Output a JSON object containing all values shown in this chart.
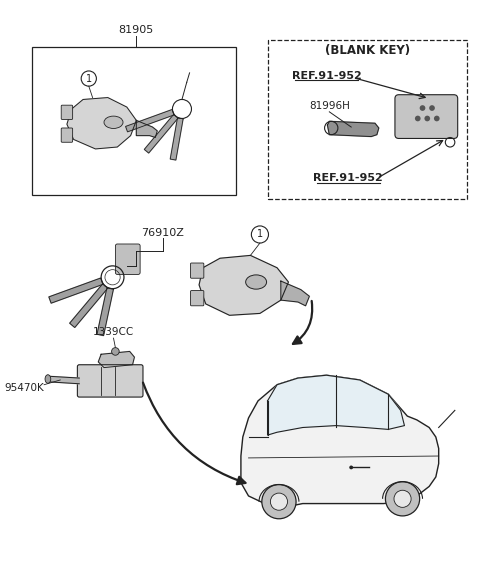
{
  "bg_color": "#ffffff",
  "line_color": "#222222",
  "label_81905": "81905",
  "label_76910Z": "76910Z",
  "label_1339CC": "1339CC",
  "label_95470K": "95470K",
  "label_81996H": "81996H",
  "label_blank_key": "(BLANK KEY)",
  "label_ref1": "REF.91-952",
  "label_ref2": "REF.91-952",
  "label_1": "1",
  "fig_width": 4.8,
  "fig_height": 5.65,
  "dpi": 100
}
